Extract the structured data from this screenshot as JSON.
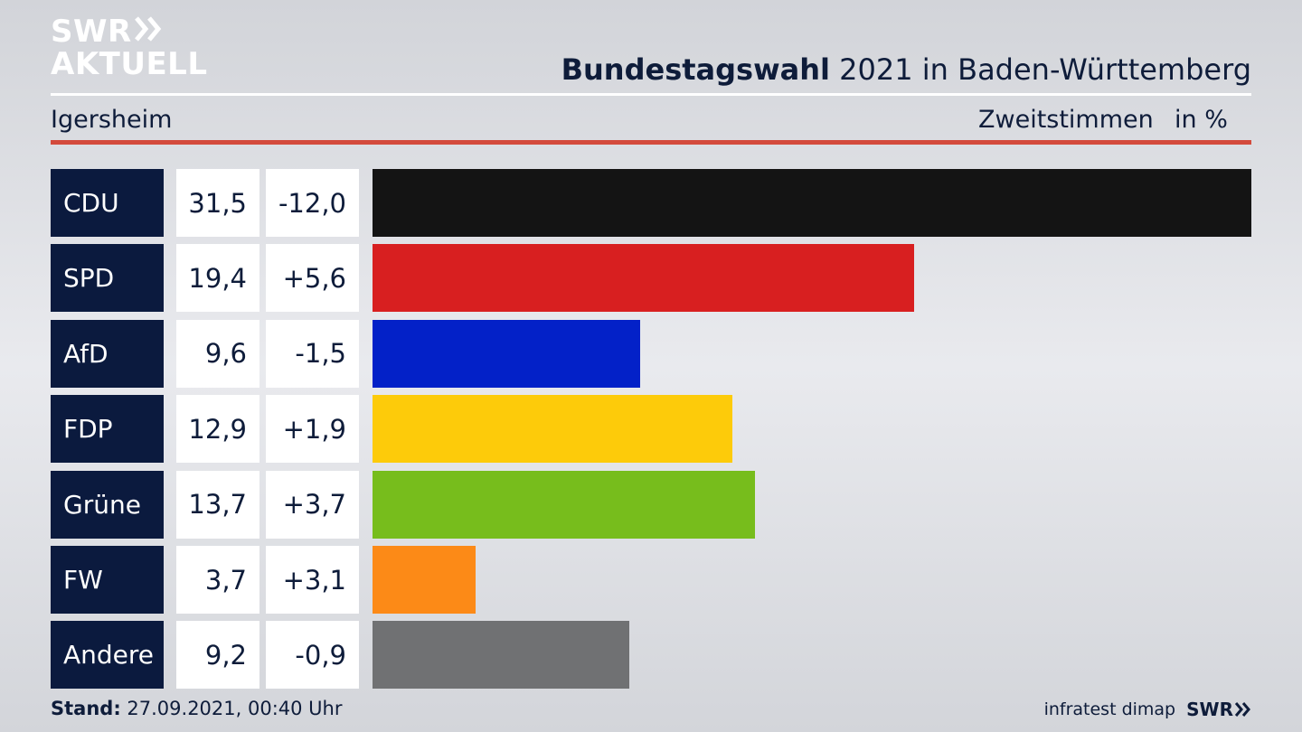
{
  "logo": {
    "line1": "SWR",
    "line2": "AKTUELL"
  },
  "header": {
    "title_bold": "Bundestagswahl",
    "title_rest": " 2021 in Baden-Württemberg"
  },
  "subheader": {
    "place": "Igersheim",
    "metric": "Zweitstimmen",
    "unit": "in %"
  },
  "chart_data": {
    "type": "bar",
    "orientation": "horizontal",
    "title": "Bundestagswahl 2021 in Baden-Württemberg",
    "xlim": [
      0,
      31.5
    ],
    "grid": false,
    "categories": [
      "CDU",
      "SPD",
      "AfD",
      "FDP",
      "Grüne",
      "FW",
      "Andere"
    ],
    "values": [
      31.5,
      19.4,
      9.6,
      12.9,
      13.7,
      3.7,
      9.2
    ],
    "rows": [
      {
        "party": "CDU",
        "value": "31,5",
        "diff": "-12,0",
        "color": "#141414"
      },
      {
        "party": "SPD",
        "value": "19,4",
        "diff": "+5,6",
        "color": "#d81f20"
      },
      {
        "party": "AfD",
        "value": "9,6",
        "diff": "-1,5",
        "color": "#0321c8"
      },
      {
        "party": "FDP",
        "value": "12,9",
        "diff": "+1,9",
        "color": "#fdcb0a"
      },
      {
        "party": "Grüne",
        "value": "13,7",
        "diff": "+3,7",
        "color": "#77bd1c"
      },
      {
        "party": "FW",
        "value": "3,7",
        "diff": "+3,1",
        "color": "#fc8a17"
      },
      {
        "party": "Andere",
        "value": "9,2",
        "diff": "-0,9",
        "color": "#707173"
      }
    ]
  },
  "footer": {
    "stand_label": "Stand:",
    "stand_value": " 27.09.2021, 00:40 Uhr",
    "source": "infratest dimap",
    "brand": "SWR"
  },
  "colors": {
    "accent_red": "#d34a3c",
    "navy": "#0b1a3e"
  }
}
